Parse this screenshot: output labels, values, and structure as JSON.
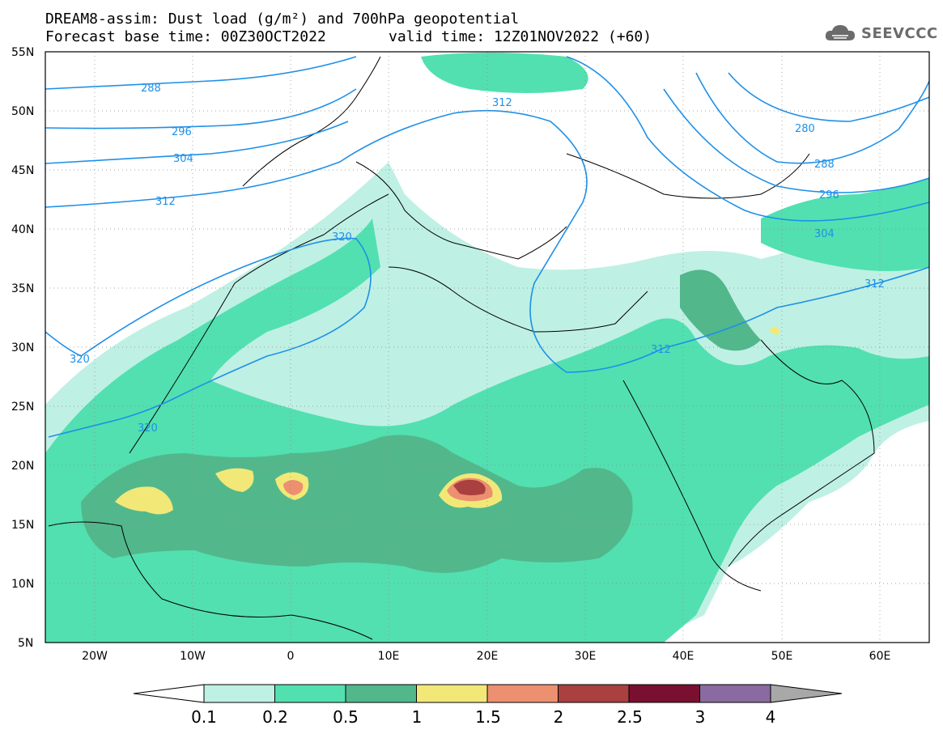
{
  "title": {
    "line1": "DREAM8-assim: Dust load (g/m²) and 700hPa geopotential",
    "line2a": "Forecast base time: 00Z30OCT2022",
    "line2b": "valid time: 12Z01NOV2022 (+60)"
  },
  "logo": {
    "text": "SEEVCCC",
    "icon": "cloud-icon"
  },
  "map": {
    "lon_range": [
      -25,
      65
    ],
    "lat_range": [
      5,
      55
    ],
    "lat_ticks": [
      "55N",
      "50N",
      "45N",
      "40N",
      "35N",
      "30N",
      "25N",
      "20N",
      "15N",
      "10N",
      "5N"
    ],
    "lon_ticks": [
      "20W",
      "10W",
      "0",
      "10E",
      "20E",
      "30E",
      "40E",
      "50E",
      "60E"
    ],
    "contour_labels": [
      "288",
      "296",
      "304",
      "312",
      "320",
      "320",
      "320",
      "312",
      "280",
      "288",
      "296",
      "304",
      "312",
      "312"
    ]
  },
  "colorbar": {
    "labels": [
      "0.1",
      "0.2",
      "0.5",
      "1",
      "1.5",
      "2",
      "2.5",
      "3",
      "4"
    ],
    "colors": [
      "#ffffff",
      "#bff0e4",
      "#52e0b0",
      "#52b88c",
      "#f2e878",
      "#ec9070",
      "#aa4040",
      "#7a1030",
      "#8a6aa0",
      "#a8a8a8"
    ]
  }
}
